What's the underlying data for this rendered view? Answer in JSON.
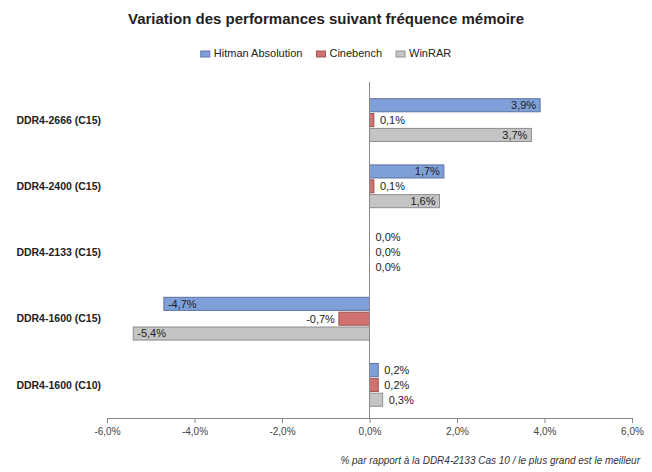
{
  "chart_data": {
    "type": "bar",
    "orientation": "horizontal",
    "title": "Variation des performances suivant fréquence mémoire",
    "note": "% par rapport à la DDR4-2133 Cas 10 / le plus grand est le meilleur",
    "categories": [
      "DDR4-2666 (C15)",
      "DDR4-2400 (C15)",
      "DDR4-2133 (C15)",
      "DDR4-1600 (C15)",
      "DDR4-1600 (C10)"
    ],
    "series": [
      {
        "name": "Hitman Absolution",
        "color": "#7f9fd9",
        "values": [
          3.9,
          1.7,
          0.0,
          -4.7,
          0.2
        ],
        "value_labels": [
          "3,9%",
          "1,7%",
          "0,0%",
          "-4,7%",
          "0,2%"
        ]
      },
      {
        "name": "Cinebench",
        "color": "#d27270",
        "values": [
          0.1,
          0.1,
          0.0,
          -0.7,
          0.2
        ],
        "value_labels": [
          "0,1%",
          "0,1%",
          "0,0%",
          "-0,7%",
          "0,2%"
        ]
      },
      {
        "name": "WinRAR",
        "color": "#c4c4c4",
        "values": [
          3.7,
          1.6,
          0.0,
          -5.4,
          0.3
        ],
        "value_labels": [
          "3,7%",
          "1,6%",
          "0,0%",
          "-5,4%",
          "0,3%"
        ]
      }
    ],
    "xlim": [
      -6,
      6
    ],
    "xticks": [
      {
        "value": -6,
        "label": "-6,0%"
      },
      {
        "value": -4,
        "label": "-4,0%"
      },
      {
        "value": -2,
        "label": "-2,0%"
      },
      {
        "value": 0,
        "label": "0,0%"
      },
      {
        "value": 2,
        "label": "2,0%"
      },
      {
        "value": 4,
        "label": "4,0%"
      },
      {
        "value": 6,
        "label": "6,0%"
      }
    ],
    "grid": false,
    "legend": "top",
    "data_labels": true
  }
}
